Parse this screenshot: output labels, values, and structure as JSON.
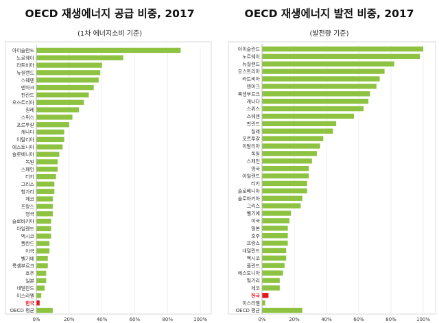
{
  "charts": [
    {
      "title": "OECD 재생에너지 공급 비중, 2017",
      "subtitle": "(1차 에너지소비 기준)"
    },
    {
      "title": "OECD 재생에너지 발전 비중, 2017",
      "subtitle": "(발전량 기준)"
    }
  ],
  "colors": {
    "bar": "#8dc341",
    "highlight": "#e8141b",
    "axis": "#b5b5b5",
    "grid": "#ededed",
    "frame": "#d9d9d9"
  },
  "chart_data": [
    {
      "type": "bar",
      "orientation": "horizontal",
      "title": "OECD 재생에너지 공급 비중, 2017",
      "subtitle": "(1차 에너지소비 기준)",
      "xlim": [
        0,
        100
      ],
      "x_ticks": [
        "0%",
        "20%",
        "40%",
        "60%",
        "80%",
        "100%"
      ],
      "grid": true,
      "highlight": "한국",
      "categories": [
        "아이슬란드",
        "노르웨이",
        "라트비아",
        "뉴질랜드",
        "스웨덴",
        "덴마크",
        "핀란드",
        "오스트리아",
        "칠레",
        "스위스",
        "포르투갈",
        "캐나다",
        "이탈리아",
        "에스토니아",
        "슬로베니아",
        "독일",
        "스페인",
        "터키",
        "그리스",
        "헝가리",
        "체코",
        "프랑스",
        "영국",
        "슬로바키아",
        "아일랜드",
        "멕시코",
        "폴란드",
        "미국",
        "벨기에",
        "룩셈부르크",
        "호주",
        "일본",
        "네덜란드",
        "이스라엘",
        "한국",
        "OECD 평균"
      ],
      "values": [
        88,
        53,
        40,
        39,
        38,
        35,
        32,
        29,
        26,
        22,
        20,
        17,
        17,
        16,
        14,
        13,
        13,
        12,
        11,
        11,
        10,
        10,
        10,
        9,
        9,
        9,
        8,
        8,
        7,
        7,
        6,
        6,
        5,
        3,
        2,
        10
      ]
    },
    {
      "type": "bar",
      "orientation": "horizontal",
      "title": "OECD 재생에너지 발전 비중, 2017",
      "subtitle": "(발전량 기준)",
      "xlim": [
        0,
        100
      ],
      "x_ticks": [
        "0%",
        "20%",
        "40%",
        "60%",
        "80%",
        "100%"
      ],
      "grid": true,
      "highlight": "한국",
      "categories": [
        "아이슬란드",
        "노르웨이",
        "뉴질랜드",
        "오스트리아",
        "라트비아",
        "덴마크",
        "룩셈부르크",
        "캐나다",
        "스위스",
        "스웨덴",
        "핀란드",
        "칠레",
        "포르투갈",
        "이탈리아",
        "독일",
        "스페인",
        "영국",
        "아일랜드",
        "터키",
        "슬로베니아",
        "슬로바키아",
        "그리스",
        "벨기에",
        "미국",
        "일본",
        "호주",
        "프랑스",
        "네덜란드",
        "멕시코",
        "폴란드",
        "에스토니아",
        "헝가리",
        "체코",
        "한국",
        "이스라엘",
        "OECD 평균"
      ],
      "values": [
        100,
        98,
        82,
        76,
        73,
        71,
        67,
        66,
        63,
        57,
        46,
        44,
        38,
        36,
        34,
        31,
        29,
        29,
        28,
        28,
        25,
        24,
        18,
        17,
        16,
        16,
        16,
        15,
        15,
        14,
        13,
        11,
        11,
        4,
        2,
        25
      ]
    }
  ]
}
